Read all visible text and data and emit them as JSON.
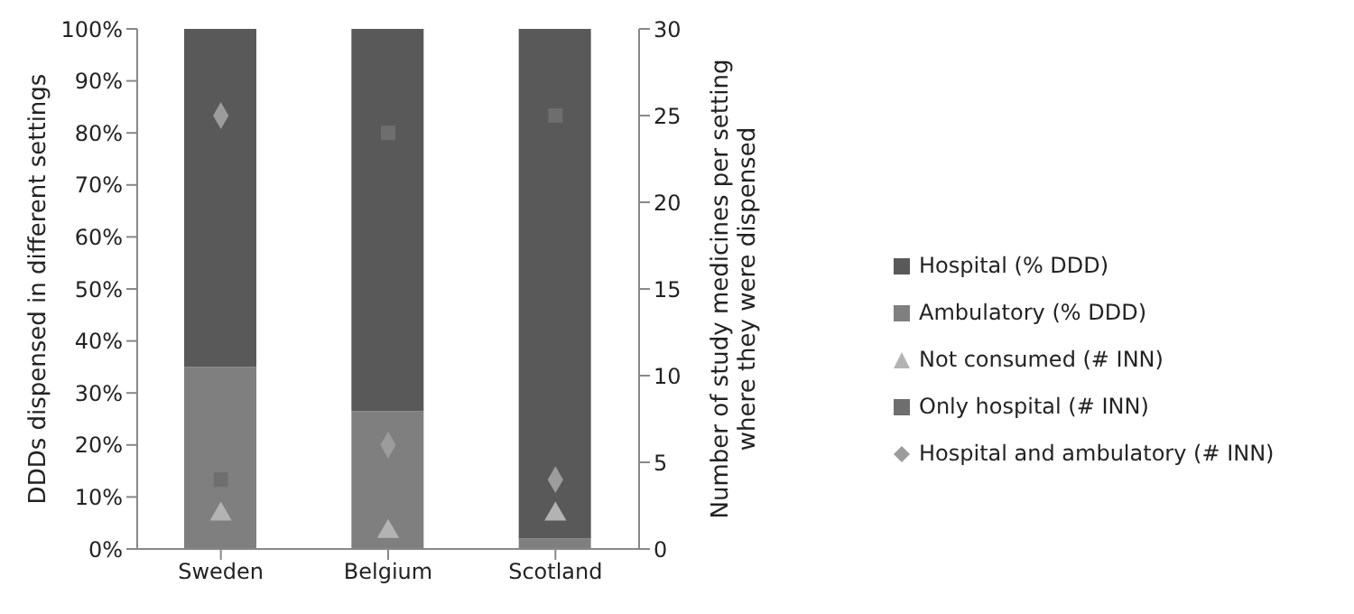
{
  "chart_data": {
    "type": "bar",
    "stacked": true,
    "categories": [
      "Sweden",
      "Belgium",
      "Scotland"
    ],
    "ylabel": "DDDs dispensed in different settings",
    "y2label": "Number of study medicines per setting\nwhere they were dispensed",
    "ylim": [
      0,
      100
    ],
    "yticks": [
      {
        "value": 0,
        "label": "0%"
      },
      {
        "value": 10,
        "label": "10%"
      },
      {
        "value": 20,
        "label": "20%"
      },
      {
        "value": 30,
        "label": "30%"
      },
      {
        "value": 40,
        "label": "40%"
      },
      {
        "value": 50,
        "label": "50%"
      },
      {
        "value": 60,
        "label": "60%"
      },
      {
        "value": 70,
        "label": "70%"
      },
      {
        "value": 80,
        "label": "80%"
      },
      {
        "value": 90,
        "label": "90%"
      },
      {
        "value": 100,
        "label": "100%"
      }
    ],
    "y2lim": [
      0,
      30
    ],
    "y2ticks": [
      0,
      5,
      10,
      15,
      20,
      25,
      30
    ],
    "grid": false,
    "legend": "right",
    "series": [
      {
        "name": "Ambulatory (% DDD)",
        "color": "#7f7f7f",
        "values": [
          35,
          26.5,
          2
        ]
      },
      {
        "name": "Hospital (% DDD)",
        "color": "#595959",
        "values": [
          65,
          73.5,
          98
        ]
      },
      {
        "name": "Not consumed (# INN)",
        "type": "scatter",
        "axis": "y2",
        "marker": "triangle",
        "color": "#b3b3b3",
        "values": [
          2,
          1,
          2
        ]
      },
      {
        "name": "Only hospital (# INN)",
        "type": "scatter",
        "axis": "y2",
        "marker": "square",
        "color": "#6e6e6e",
        "values": [
          4,
          24,
          25
        ]
      },
      {
        "name": "Hospital and ambulatory (# INN)",
        "type": "scatter",
        "axis": "y2",
        "marker": "diamond",
        "color": "#9c9c9c",
        "values": [
          25,
          6,
          4
        ]
      }
    ]
  }
}
